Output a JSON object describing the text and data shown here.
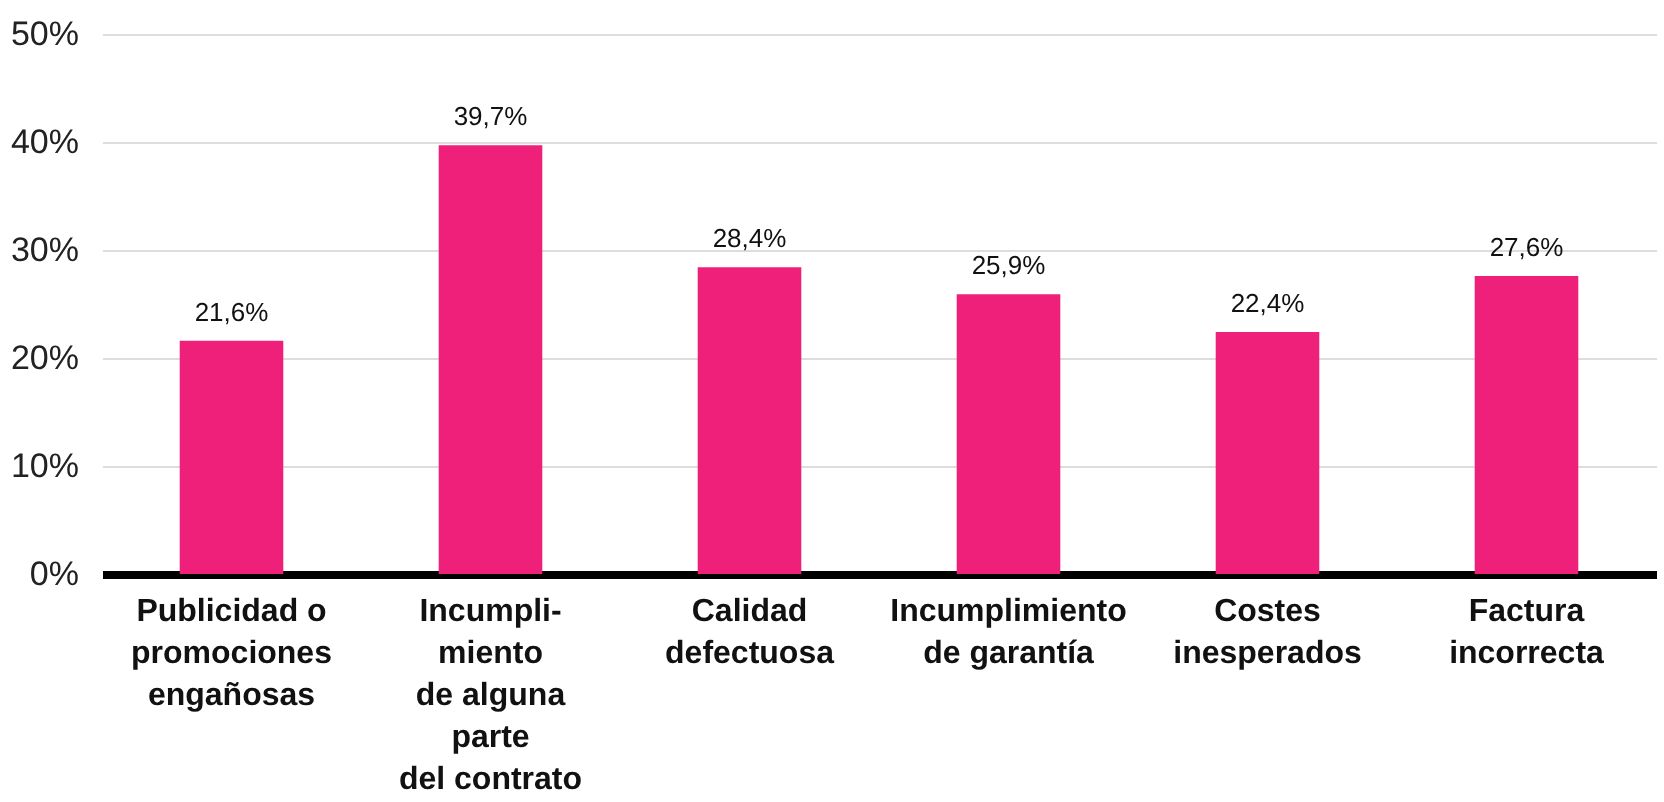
{
  "chart_data": {
    "type": "bar",
    "categories": [
      "Publicidad o\npromociones\nengañosas",
      "Incumpli-\nmiento\nde alguna\nparte\ndel contrato",
      "Calidad\ndefectuosa",
      "Incumplimiento\nde garantía",
      "Costes\ninesperados",
      "Factura\nincorrecta"
    ],
    "values": [
      21.6,
      39.7,
      28.4,
      25.9,
      22.4,
      27.6
    ],
    "value_labels": [
      "21,6%",
      "39,7%",
      "28,4%",
      "25,9%",
      "22,4%",
      "27,6%"
    ],
    "color": "#ee2079",
    "ylim": [
      0,
      50
    ],
    "yticks": [
      {
        "value": 0,
        "label": "0%"
      },
      {
        "value": 10,
        "label": "10%"
      },
      {
        "value": 20,
        "label": "20%"
      },
      {
        "value": 30,
        "label": "30%"
      },
      {
        "value": 40,
        "label": "40%"
      },
      {
        "value": 50,
        "label": "50%"
      }
    ],
    "grid": "y"
  }
}
